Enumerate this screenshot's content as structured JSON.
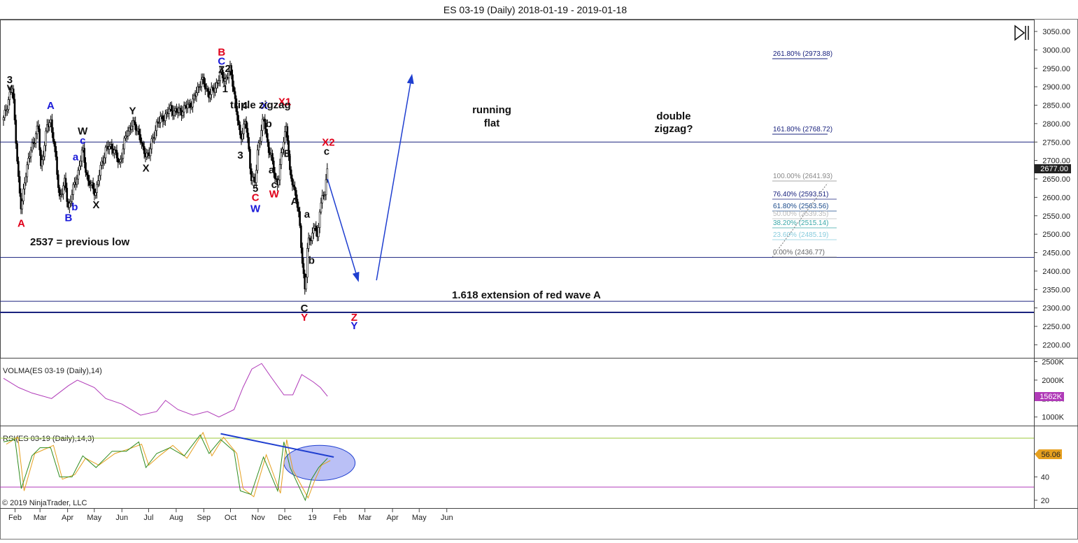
{
  "window": {
    "title": "ES 03-19 (Daily)  2018-01-19 - 2019-01-18",
    "copyright": "© 2019 NinjaTrader, LLC"
  },
  "colors": {
    "candle_up": "#ffffff",
    "candle_down": "#000000",
    "wave_blue": "#1a1ad9",
    "wave_red": "#e0001a",
    "volma": "#b03ab8",
    "rsi": "#2e8b1e",
    "rsi_avg": "#e6a020",
    "hline": "#1a237e",
    "arrow": "#1f3fd0",
    "rsi_upper": "#9bc93a",
    "rsi_lower": "#b03ab8",
    "ellipse": "#8c96f0"
  },
  "price_panel": {
    "last_price": "2677.00",
    "y_ticks": [
      "3050.00",
      "3000.00",
      "2950.00",
      "2900.00",
      "2850.00",
      "2800.00",
      "2750.00",
      "2700.00",
      "2650.00",
      "2600.00",
      "2550.00",
      "2500.00",
      "2450.00",
      "2400.00",
      "2350.00",
      "2300.00",
      "2250.00",
      "2200.00"
    ],
    "annotations": {
      "prev_low": "2537 = previous low",
      "extension": "1.618 extension of red wave A",
      "triple": "triple zigzag",
      "running": "running",
      "flat": "flat",
      "double": "double",
      "zigzag": "zigzag?"
    },
    "fib_levels": [
      "261.80% (2973.88)",
      "161.80% (2768.72)",
      "100.00% (2641.93)",
      "76.40% (2593.51)",
      "61.80% (2563.56)",
      "50.00% (2539.35)",
      "38.20% (2515.14)",
      "23.60% (2485.19)",
      "0.00% (2436.77)"
    ],
    "wave_labels": [
      "3",
      "v",
      "A",
      "A",
      "B",
      "a",
      "b",
      "W",
      "c",
      "X",
      "Y",
      "X",
      "B",
      "C",
      "Z",
      "2",
      "1",
      "3",
      "4",
      "5",
      "C",
      "W",
      "X",
      "b",
      "a",
      "c",
      "W",
      "X1",
      "B",
      "A",
      "a",
      "b",
      "C",
      "Y",
      "X2",
      "c",
      "Z",
      "Y"
    ]
  },
  "volma_panel": {
    "label": "VOLMA(ES 03-19 (Daily),14)",
    "y_ticks": [
      "2500K",
      "2000K",
      "1500K",
      "1000K"
    ],
    "last": "1562K"
  },
  "rsi_panel": {
    "label": "RSI(ES 03-19 (Daily),14,3)",
    "y_ticks": [
      "60",
      "40",
      "20"
    ],
    "last": "56.06"
  },
  "x_axis": {
    "labels": [
      "Feb",
      "Mar",
      "Apr",
      "May",
      "Jun",
      "Jul",
      "Aug",
      "Sep",
      "Oct",
      "Nov",
      "Dec",
      "19",
      "Feb",
      "Mar",
      "Apr",
      "May",
      "Jun"
    ]
  },
  "chart_data": {
    "type": "candlestick",
    "title": "ES 03-19 (Daily)  2018-01-19 - 2019-01-18",
    "ylim": [
      2175,
      3075
    ],
    "close_path": [
      [
        "2018-01-19",
        2810
      ],
      [
        "2018-01-26",
        2880
      ],
      [
        "2018-01-29",
        2895
      ],
      [
        "2018-02-02",
        2760
      ],
      [
        "2018-02-05",
        2640
      ],
      [
        "2018-02-08",
        2560
      ],
      [
        "2018-02-12",
        2655
      ],
      [
        "2018-02-20",
        2740
      ],
      [
        "2018-02-27",
        2790
      ],
      [
        "2018-03-02",
        2680
      ],
      [
        "2018-03-09",
        2790
      ],
      [
        "2018-03-13",
        2810
      ],
      [
        "2018-03-16",
        2760
      ],
      [
        "2018-03-23",
        2600
      ],
      [
        "2018-03-29",
        2640
      ],
      [
        "2018-04-02",
        2570
      ],
      [
        "2018-04-06",
        2610
      ],
      [
        "2018-04-13",
        2670
      ],
      [
        "2018-04-18",
        2730
      ],
      [
        "2018-04-24",
        2640
      ],
      [
        "2018-05-03",
        2615
      ],
      [
        "2018-05-09",
        2690
      ],
      [
        "2018-05-14",
        2730
      ],
      [
        "2018-05-21",
        2740
      ],
      [
        "2018-05-29",
        2690
      ],
      [
        "2018-06-06",
        2770
      ],
      [
        "2018-06-12",
        2800
      ],
      [
        "2018-06-20",
        2780
      ],
      [
        "2018-06-25",
        2720
      ],
      [
        "2018-07-02",
        2720
      ],
      [
        "2018-07-10",
        2800
      ],
      [
        "2018-07-17",
        2815
      ],
      [
        "2018-07-26",
        2840
      ],
      [
        "2018-08-02",
        2830
      ],
      [
        "2018-08-10",
        2840
      ],
      [
        "2018-08-20",
        2860
      ],
      [
        "2018-08-29",
        2920
      ],
      [
        "2018-09-07",
        2880
      ],
      [
        "2018-09-12",
        2890
      ],
      [
        "2018-09-20",
        2935
      ],
      [
        "2018-09-25",
        2920
      ],
      [
        "2018-10-01",
        2945
      ],
      [
        "2018-10-04",
        2905
      ],
      [
        "2018-10-10",
        2790
      ],
      [
        "2018-10-12",
        2760
      ],
      [
        "2018-10-18",
        2810
      ],
      [
        "2018-10-24",
        2660
      ],
      [
        "2018-10-29",
        2640
      ],
      [
        "2018-11-01",
        2740
      ],
      [
        "2018-11-07",
        2815
      ],
      [
        "2018-11-12",
        2740
      ],
      [
        "2018-11-15",
        2720
      ],
      [
        "2018-11-20",
        2650
      ],
      [
        "2018-11-23",
        2640
      ],
      [
        "2018-11-30",
        2760
      ],
      [
        "2018-12-03",
        2800
      ],
      [
        "2018-12-07",
        2650
      ],
      [
        "2018-12-10",
        2640
      ],
      [
        "2018-12-14",
        2600
      ],
      [
        "2018-12-17",
        2540
      ],
      [
        "2018-12-21",
        2420
      ],
      [
        "2018-12-24",
        2340
      ],
      [
        "2018-12-26",
        2450
      ],
      [
        "2018-12-28",
        2480
      ],
      [
        "2019-01-02",
        2510
      ],
      [
        "2019-01-04",
        2530
      ],
      [
        "2019-01-07",
        2470
      ],
      [
        "2019-01-09",
        2570
      ],
      [
        "2019-01-11",
        2595
      ],
      [
        "2019-01-15",
        2610
      ],
      [
        "2019-01-18",
        2677
      ]
    ],
    "hlines": [
      2750,
      2437,
      2318,
      2288
    ],
    "projection": [
      [
        "2019-01-18",
        2650
      ],
      [
        "2019-02-22",
        2370
      ]
    ],
    "projection2": [
      [
        "2019-03-14",
        2375
      ],
      [
        "2019-04-23",
        2935
      ]
    ],
    "volma_path": [
      [
        "2018-01-19",
        2050
      ],
      [
        "2018-02-05",
        1800
      ],
      [
        "2018-02-20",
        1650
      ],
      [
        "2018-03-14",
        1500
      ],
      [
        "2018-04-02",
        1850
      ],
      [
        "2018-04-12",
        2000
      ],
      [
        "2018-05-01",
        1800
      ],
      [
        "2018-05-14",
        1500
      ],
      [
        "2018-06-01",
        1350
      ],
      [
        "2018-06-22",
        1050
      ],
      [
        "2018-07-10",
        1150
      ],
      [
        "2018-07-20",
        1450
      ],
      [
        "2018-08-03",
        1200
      ],
      [
        "2018-08-20",
        1050
      ],
      [
        "2018-09-05",
        1150
      ],
      [
        "2018-09-18",
        1000
      ],
      [
        "2018-10-05",
        1200
      ],
      [
        "2018-10-15",
        1800
      ],
      [
        "2018-10-25",
        2300
      ],
      [
        "2018-11-05",
        2450
      ],
      [
        "2018-11-15",
        2100
      ],
      [
        "2018-11-30",
        1600
      ],
      [
        "2018-12-10",
        1600
      ],
      [
        "2018-12-20",
        2150
      ],
      [
        "2019-01-02",
        1950
      ],
      [
        "2019-01-10",
        1800
      ],
      [
        "2019-01-18",
        1560
      ]
    ],
    "rsi_path": [
      [
        "2018-01-19",
        70
      ],
      [
        "2018-02-01",
        72
      ],
      [
        "2018-02-08",
        30
      ],
      [
        "2018-02-20",
        58
      ],
      [
        "2018-03-01",
        65
      ],
      [
        "2018-03-13",
        65
      ],
      [
        "2018-03-23",
        40
      ],
      [
        "2018-04-06",
        40
      ],
      [
        "2018-04-18",
        58
      ],
      [
        "2018-05-03",
        48
      ],
      [
        "2018-05-21",
        62
      ],
      [
        "2018-06-06",
        62
      ],
      [
        "2018-06-20",
        70
      ],
      [
        "2018-06-28",
        48
      ],
      [
        "2018-07-10",
        60
      ],
      [
        "2018-07-25",
        65
      ],
      [
        "2018-08-10",
        58
      ],
      [
        "2018-08-28",
        76
      ],
      [
        "2018-09-07",
        60
      ],
      [
        "2018-09-20",
        72
      ],
      [
        "2018-10-05",
        62
      ],
      [
        "2018-10-12",
        28
      ],
      [
        "2018-10-24",
        25
      ],
      [
        "2018-11-07",
        57
      ],
      [
        "2018-11-23",
        28
      ],
      [
        "2018-11-30",
        70
      ],
      [
        "2018-12-07",
        48
      ],
      [
        "2018-12-24",
        20
      ],
      [
        "2018-12-31",
        38
      ],
      [
        "2019-01-08",
        48
      ],
      [
        "2019-01-18",
        56
      ]
    ],
    "rsi_trendline": [
      [
        "2018-09-20",
        77
      ],
      [
        "2019-01-25",
        57
      ]
    ],
    "annotation_ellipse": {
      "center": [
        "2019-01-09",
        52
      ],
      "x_radius_days": 20,
      "y_radius": 15
    },
    "wave_label_points": [
      {
        "t": "3",
        "c": "black",
        "d": "2018-01-26",
        "p": 2910
      },
      {
        "t": "v",
        "c": "black",
        "d": "2018-01-26",
        "p": 2890
      },
      {
        "t": "A",
        "c": "red",
        "d": "2018-02-08",
        "p": 2520
      },
      {
        "t": "A",
        "c": "blue",
        "d": "2018-03-13",
        "p": 2840
      },
      {
        "t": "B",
        "c": "blue",
        "d": "2018-04-02",
        "p": 2535
      },
      {
        "t": "a",
        "c": "blue",
        "d": "2018-04-10",
        "p": 2700
      },
      {
        "t": "b",
        "c": "blue",
        "d": "2018-04-09",
        "p": 2565
      },
      {
        "t": "W",
        "c": "black",
        "d": "2018-04-18",
        "p": 2770
      },
      {
        "t": "c",
        "c": "blue",
        "d": "2018-04-18",
        "p": 2745
      },
      {
        "t": "X",
        "c": "black",
        "d": "2018-05-03",
        "p": 2570
      },
      {
        "t": "Y",
        "c": "black",
        "d": "2018-06-13",
        "p": 2825
      },
      {
        "t": "X",
        "c": "black",
        "d": "2018-06-28",
        "p": 2670
      },
      {
        "t": "B",
        "c": "red",
        "d": "2018-09-21",
        "p": 2985
      },
      {
        "t": "C",
        "c": "blue",
        "d": "2018-09-21",
        "p": 2960
      },
      {
        "t": "Z",
        "c": "black",
        "d": "2018-09-21",
        "p": 2937
      },
      {
        "t": "2",
        "c": "black",
        "d": "2018-09-28",
        "p": 2940
      },
      {
        "t": "1",
        "c": "black",
        "d": "2018-09-25",
        "p": 2885
      },
      {
        "t": "3",
        "c": "black",
        "d": "2018-10-12",
        "p": 2705
      },
      {
        "t": "4",
        "c": "black",
        "d": "2018-10-17",
        "p": 2840
      },
      {
        "t": "5",
        "c": "black",
        "d": "2018-10-29",
        "p": 2615
      },
      {
        "t": "C",
        "c": "red",
        "d": "2018-10-29",
        "p": 2590
      },
      {
        "t": "W",
        "c": "blue",
        "d": "2018-10-29",
        "p": 2560
      },
      {
        "t": "X",
        "c": "blue",
        "d": "2018-11-08",
        "p": 2840
      },
      {
        "t": "b",
        "c": "black",
        "d": "2018-11-13",
        "p": 2790
      },
      {
        "t": "a",
        "c": "black",
        "d": "2018-11-16",
        "p": 2665
      },
      {
        "t": "c",
        "c": "black",
        "d": "2018-11-19",
        "p": 2625
      },
      {
        "t": "W",
        "c": "red",
        "d": "2018-11-19",
        "p": 2600
      },
      {
        "t": "X1",
        "c": "red",
        "d": "2018-12-01",
        "p": 2850
      },
      {
        "t": "B",
        "c": "black",
        "d": "2018-12-04",
        "p": 2710
      },
      {
        "t": "A",
        "c": "black",
        "d": "2018-12-12",
        "p": 2580
      },
      {
        "t": "a",
        "c": "black",
        "d": "2018-12-26",
        "p": 2545
      },
      {
        "t": "b",
        "c": "black",
        "d": "2018-12-31",
        "p": 2420
      },
      {
        "t": "C",
        "c": "black",
        "d": "2018-12-23",
        "p": 2290
      },
      {
        "t": "Y",
        "c": "red",
        "d": "2018-12-23",
        "p": 2265
      },
      {
        "t": "X2",
        "c": "red",
        "d": "2019-01-19",
        "p": 2740
      },
      {
        "t": "c",
        "c": "black",
        "d": "2019-01-17",
        "p": 2715
      },
      {
        "t": "Z",
        "c": "red",
        "d": "2019-02-17",
        "p": 2265
      },
      {
        "t": "Y",
        "c": "blue",
        "d": "2019-02-17",
        "p": 2242
      }
    ]
  }
}
